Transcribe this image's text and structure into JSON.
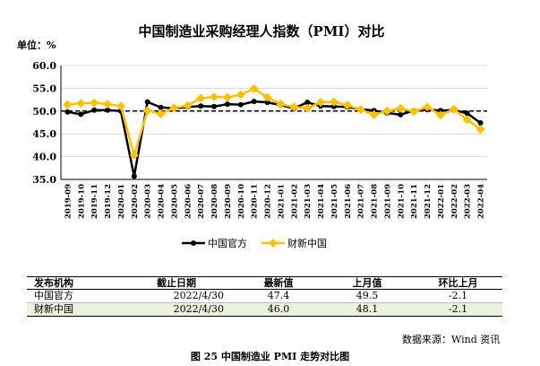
{
  "chart_data": {
    "type": "line",
    "title": "中国制造业采购经理人指数（PMI）对比",
    "unit_label": "单位：%",
    "ylim": [
      35.0,
      60.0
    ],
    "yticks": [
      "35.0",
      "40.0",
      "45.0",
      "50.0",
      "55.0",
      "60.0"
    ],
    "reference_line": 50.0,
    "categories": [
      "2019-09",
      "2019-10",
      "2019-11",
      "2019-12",
      "2020-01",
      "2020-02",
      "2020-03",
      "2020-04",
      "2020-05",
      "2020-06",
      "2020-07",
      "2020-08",
      "2020-09",
      "2020-10",
      "2020-11",
      "2020-12",
      "2021-01",
      "2021-02",
      "2021-03",
      "2021-04",
      "2021-05",
      "2021-06",
      "2021-07",
      "2021-08",
      "2021-09",
      "2021-10",
      "2021-11",
      "2021-12",
      "2022-01",
      "2022-02",
      "2022-03",
      "2022-04"
    ],
    "series": [
      {
        "name": "中国官方",
        "color": "#000000",
        "values": [
          49.8,
          49.3,
          50.2,
          50.2,
          50.0,
          35.7,
          52.0,
          50.8,
          50.6,
          50.9,
          51.1,
          51.0,
          51.5,
          51.4,
          52.1,
          51.9,
          51.3,
          50.6,
          51.9,
          51.1,
          51.0,
          50.9,
          50.4,
          50.1,
          49.6,
          49.2,
          50.1,
          50.3,
          50.1,
          50.2,
          49.5,
          47.4
        ]
      },
      {
        "name": "财新中国",
        "color": "#ffc000",
        "values": [
          51.4,
          51.7,
          51.8,
          51.5,
          51.1,
          40.3,
          50.1,
          49.4,
          50.7,
          51.2,
          52.8,
          53.1,
          53.0,
          53.6,
          54.9,
          53.0,
          51.5,
          50.9,
          50.6,
          51.9,
          52.0,
          51.3,
          50.3,
          49.2,
          50.0,
          50.6,
          49.9,
          50.9,
          49.1,
          50.4,
          48.1,
          46.0
        ]
      }
    ]
  },
  "table": {
    "headers": [
      "发布机构",
      "截止日期",
      "最新值",
      "上月值",
      "环比上月"
    ],
    "rows": [
      [
        "中国官方",
        "2022/4/30",
        "47.4",
        "49.5",
        "-2.1"
      ],
      [
        "财新中国",
        "2022/4/30",
        "46.0",
        "48.1",
        "-2.1"
      ]
    ]
  },
  "source_text": "数据来源：Wind 资讯",
  "caption": "图 25   中国制造业 PMI 走势对比图"
}
